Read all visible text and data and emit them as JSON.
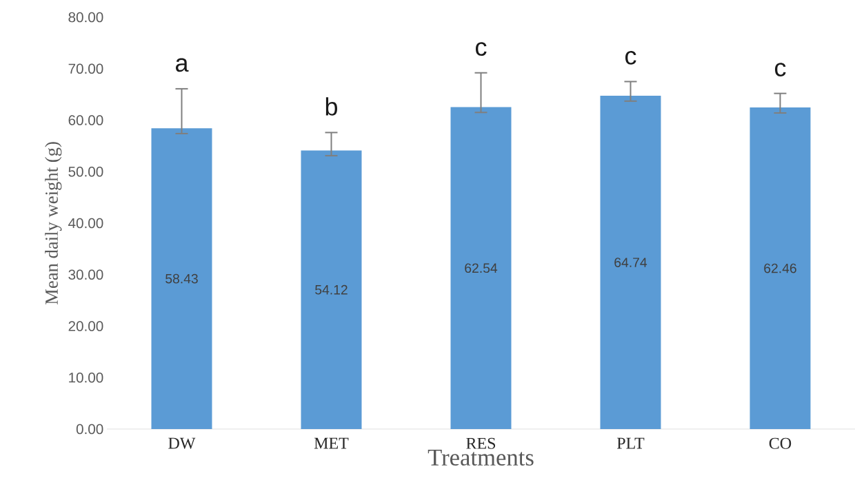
{
  "chart_data": {
    "type": "bar",
    "xlabel": "Treatments",
    "ylabel": "Mean daily weight (g)",
    "categories": [
      "DW",
      "MET",
      "RES",
      "PLT",
      "CO"
    ],
    "values": [
      58.43,
      54.12,
      62.54,
      64.74,
      62.46
    ],
    "color": "#5b9bd5",
    "errors": [
      [
        57.4,
        66.1
      ],
      [
        53.1,
        57.6
      ],
      [
        61.5,
        69.2
      ],
      [
        63.7,
        67.5
      ],
      [
        61.4,
        65.2
      ]
    ],
    "data_labels": true,
    "ylim": [
      0,
      80
    ],
    "yticks": [
      {
        "value": 0,
        "label": "0.00"
      },
      {
        "value": 10,
        "label": "10.00"
      },
      {
        "value": 20,
        "label": "20.00"
      },
      {
        "value": 30,
        "label": "30.00"
      },
      {
        "value": 40,
        "label": "40.00"
      },
      {
        "value": 50,
        "label": "50.00"
      },
      {
        "value": 60,
        "label": "60.00"
      },
      {
        "value": 70,
        "label": "70.00"
      },
      {
        "value": 80,
        "label": "80.00"
      }
    ],
    "grid": false,
    "annotations": [
      "a",
      "b",
      "c",
      "c",
      "c"
    ]
  }
}
